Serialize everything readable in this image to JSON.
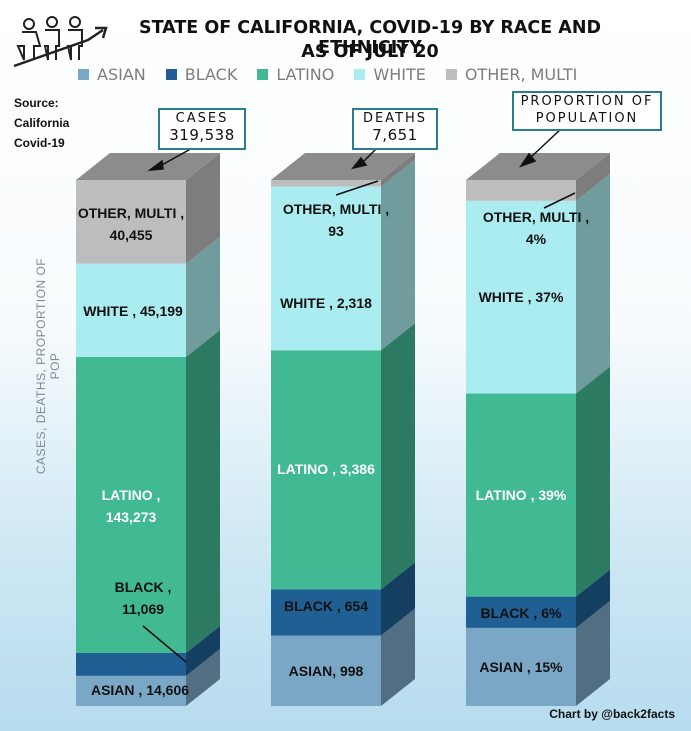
{
  "title_line1": "STATE OF CALIFORNIA, COVID-19 BY RACE AND ETHNICITY",
  "title_line2": "AS OF JULY 20",
  "source": {
    "line1": "Source:",
    "line2": "California",
    "line3": "Covid-19"
  },
  "ylabel": "CASES, DEATHS, PROPORTION OF POP",
  "credit": "Chart by @back2facts",
  "callouts": {
    "cases": {
      "label": "CASES",
      "value": "319,538"
    },
    "deaths": {
      "label": "DEATHS",
      "value": "7,651"
    },
    "population": {
      "line1": "PROPORTION OF",
      "line2": "POPULATION"
    }
  },
  "colors": {
    "asian": "#7ba7c7",
    "black": "#1f5f93",
    "latino": "#41b993",
    "white": "#abecf0",
    "other": "#bdbdbd"
  },
  "chart_data": {
    "type": "bar",
    "stacked": true,
    "normalized_to_percent": true,
    "categories": [
      "CASES",
      "DEATHS",
      "PROPORTION OF POPULATION"
    ],
    "legend_position": "top",
    "series": [
      {
        "name": "ASIAN",
        "key": "asian",
        "values": [
          14606,
          998,
          15
        ],
        "labels": [
          "ASIAN ,  14,606",
          "ASIAN, 998",
          "ASIAN , 15%"
        ]
      },
      {
        "name": "BLACK",
        "key": "black",
        "values": [
          11069,
          654,
          6
        ],
        "labels": [
          "BLACK ,\n11,069",
          "BLACK ,  654",
          "BLACK , 6%"
        ]
      },
      {
        "name": "LATINO",
        "key": "latino",
        "values": [
          143273,
          3386,
          39
        ],
        "labels": [
          "LATINO ,\n143,273",
          "LATINO ,  3,386",
          "LATINO , 39%"
        ]
      },
      {
        "name": "WHITE",
        "key": "white",
        "values": [
          45199,
          2318,
          37
        ],
        "labels": [
          "WHITE ,  45,199",
          "WHITE ,  2,318",
          "WHITE , 37%"
        ]
      },
      {
        "name": "OTHER, MULTI",
        "key": "other",
        "values": [
          40455,
          93,
          4
        ],
        "labels": [
          "OTHER, MULTI ,\n40,455",
          "OTHER, MULTI ,\n93",
          "OTHER, MULTI ,\n4%"
        ]
      }
    ]
  }
}
